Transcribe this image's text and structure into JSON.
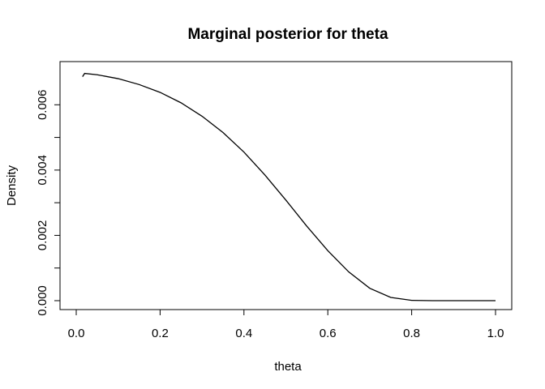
{
  "chart_data": {
    "type": "line",
    "title": "Marginal posterior for theta",
    "xlabel": "theta",
    "ylabel": "Density",
    "xlim": [
      0.0,
      1.0
    ],
    "ylim": [
      0.0,
      0.007
    ],
    "xticks": [
      0.0,
      0.2,
      0.4,
      0.6,
      0.8,
      1.0
    ],
    "xtick_labels": [
      "0.0",
      "0.2",
      "0.4",
      "0.6",
      "0.8",
      "1.0"
    ],
    "yticks": [
      0.0,
      0.001,
      0.002,
      0.003,
      0.004,
      0.005,
      0.006
    ],
    "ytick_labels": [
      "0.000",
      "",
      "0.002",
      "",
      "0.004",
      "",
      "0.006"
    ],
    "grid": false,
    "legend": "none",
    "line_color": "#000000",
    "series": [
      {
        "x": [
          0.015,
          0.02,
          0.05,
          0.1,
          0.15,
          0.2,
          0.25,
          0.3,
          0.35,
          0.4,
          0.45,
          0.5,
          0.55,
          0.6,
          0.65,
          0.7,
          0.75,
          0.8,
          0.85,
          0.9,
          0.95,
          1.0
        ],
        "values": [
          0.00686,
          0.00696,
          0.00692,
          0.0068,
          0.00662,
          0.00638,
          0.00606,
          0.00565,
          0.00515,
          0.00455,
          0.00385,
          0.00308,
          0.00228,
          0.00153,
          0.00088,
          0.00038,
          0.0001,
          1e-05,
          0.0,
          0.0,
          0.0,
          0.0
        ]
      }
    ]
  }
}
